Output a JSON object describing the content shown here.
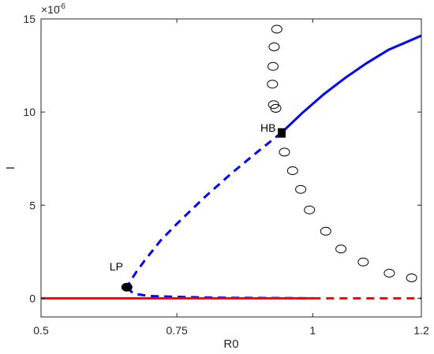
{
  "chart_data": {
    "type": "line",
    "xlabel": "R0",
    "ylabel": "I",
    "xlim": [
      0.5,
      1.2
    ],
    "ylim": [
      -1e-06,
      1.5e-05
    ],
    "y_exponent_label": "×10",
    "y_exponent_power": "-6",
    "x_ticks": [
      {
        "value": 0.5,
        "label": "0.5"
      },
      {
        "value": 0.75,
        "label": "0.75"
      },
      {
        "value": 1.0,
        "label": "1"
      },
      {
        "value": 1.2,
        "label": "1.2"
      }
    ],
    "y_ticks": [
      {
        "value": 0,
        "label": "0"
      },
      {
        "value": 5e-06,
        "label": "5"
      },
      {
        "value": 1e-05,
        "label": "10"
      },
      {
        "value": 1.5e-05,
        "label": "15"
      }
    ],
    "colors": {
      "blue": "#0000ff",
      "red": "#ff0000",
      "axes": "#262626"
    },
    "series": [
      {
        "style": "solid",
        "color": "#0000ff",
        "x": [
          0.943,
          0.98,
          1.02,
          1.06,
          1.1,
          1.14,
          1.2
        ],
        "y": [
          8.9e-06,
          9.93e-06,
          1.095e-05,
          1.184e-05,
          1.264e-05,
          1.335e-05,
          1.41e-05
        ]
      },
      {
        "style": "dashed",
        "color": "#0000ff",
        "x": [
          0.943,
          0.9,
          0.85,
          0.8,
          0.75,
          0.72,
          0.69,
          0.675,
          0.665,
          0.658
        ],
        "y": [
          8.9e-06,
          7.9e-06,
          6.7e-06,
          5.4e-06,
          4e-06,
          3.1e-06,
          2e-06,
          1.4e-06,
          9.5e-07,
          6e-07
        ]
      },
      {
        "style": "dashed",
        "color": "#0000ff",
        "x": [
          0.658,
          0.67,
          0.7,
          0.75,
          0.8,
          0.85,
          0.9,
          0.95,
          1.0
        ],
        "y": [
          6e-07,
          2.5e-07,
          1.2e-07,
          8e-08,
          5e-08,
          3e-08,
          2e-08,
          1e-08,
          0.0
        ]
      },
      {
        "style": "solid",
        "color": "#ff0000",
        "x": [
          0.5,
          1.0
        ],
        "y": [
          0,
          0
        ]
      },
      {
        "style": "dashed",
        "color": "#ff0000",
        "x": [
          1.0,
          1.2
        ],
        "y": [
          0,
          0
        ]
      }
    ],
    "periodic_orbits": {
      "marker": "ellipse-open",
      "x": [
        0.934,
        0.929,
        0.927,
        0.926,
        0.928,
        0.932,
        0.948,
        0.963,
        0.978,
        0.994,
        1.024,
        1.052,
        1.093,
        1.141,
        1.182
      ],
      "y": [
        1.445e-05,
        1.35e-05,
        1.245e-05,
        1.15e-05,
        1.04e-05,
        1.02e-05,
        7.85e-06,
        6.85e-06,
        5.85e-06,
        4.75e-06,
        3.6e-06,
        2.65e-06,
        1.95e-06,
        1.35e-06,
        1.1e-06
      ]
    },
    "special_points": [
      {
        "label": "LP",
        "marker": "filled-circle",
        "x": 0.658,
        "y": 6e-07
      },
      {
        "label": "HB",
        "marker": "filled-square",
        "x": 0.943,
        "y": 8.9e-06
      }
    ]
  }
}
